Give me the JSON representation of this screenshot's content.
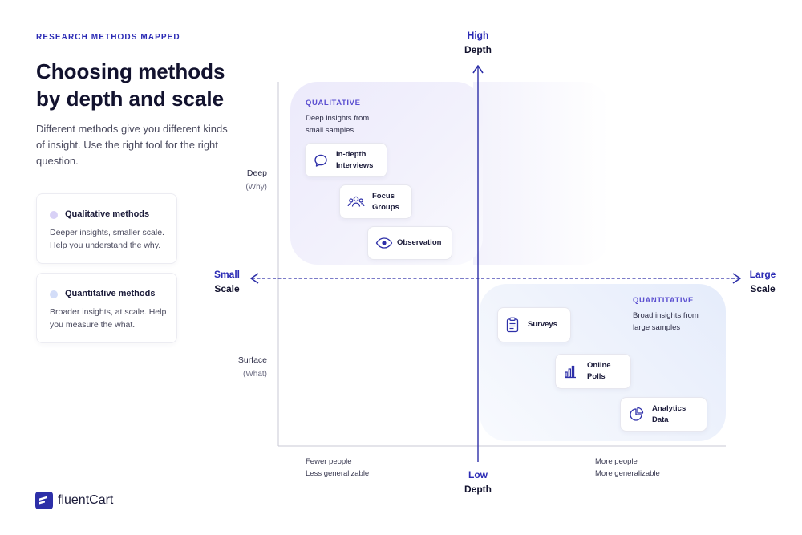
{
  "header": {
    "eyebrow": "RESEARCH METHODS MAPPED",
    "title": "Choosing methods by depth and scale",
    "description": "Different methods give you different kinds of insight. Use the right tool for the right question."
  },
  "legend": [
    {
      "title": "Qualitative methods",
      "text": "Deeper insights, smaller scale. Help you understand the why.",
      "color": "#cfc8f3"
    },
    {
      "title": "Quantitative methods",
      "text": "Broader insights, at scale. Help you measure the what.",
      "color": "#c9d6f7"
    }
  ],
  "axes": {
    "top": {
      "accent": "High",
      "label": "Depth"
    },
    "bottom": {
      "accent": "Low",
      "label": "Depth"
    },
    "left": {
      "accent": "Small",
      "label": "Scale"
    },
    "right": {
      "accent": "Large",
      "label": "Scale"
    },
    "deep": {
      "label": "Deep",
      "sub": "(Why)"
    },
    "surface": {
      "label": "Surface",
      "sub": "(What)"
    },
    "fewer": {
      "line1": "Fewer people",
      "line2": "Less generalizable"
    },
    "more": {
      "line1": "More people",
      "line2": "More generalizable"
    }
  },
  "regions": {
    "qualitative": {
      "label": "QUALITATIVE",
      "line1": "Deep insights from",
      "line2": "small samples"
    },
    "quantitative": {
      "label": "QUANTITATIVE",
      "line1": "Broad insights from",
      "line2": "large samples"
    }
  },
  "methods": {
    "interviews": {
      "line1": "In-depth",
      "line2": "Interviews",
      "icon": "chat-bubble-icon"
    },
    "focus": {
      "line1": "Focus",
      "line2": "Groups",
      "icon": "users-icon"
    },
    "observation": {
      "line1": "Observation",
      "icon": "eye-icon"
    },
    "surveys": {
      "line1": "Surveys",
      "icon": "clipboard-icon"
    },
    "polls": {
      "line1": "Online",
      "line2": "Polls",
      "icon": "bar-chart-icon"
    },
    "analytics": {
      "line1": "Analytics",
      "line2": "Data",
      "icon": "pie-chart-icon"
    }
  },
  "colors": {
    "accent": "#2b2bb5",
    "axis": "#2d2fa8",
    "qualitative_tint": "#eceafb",
    "quantitative_tint": "#e5ecfb"
  },
  "brand": {
    "name": "fluentCart"
  }
}
